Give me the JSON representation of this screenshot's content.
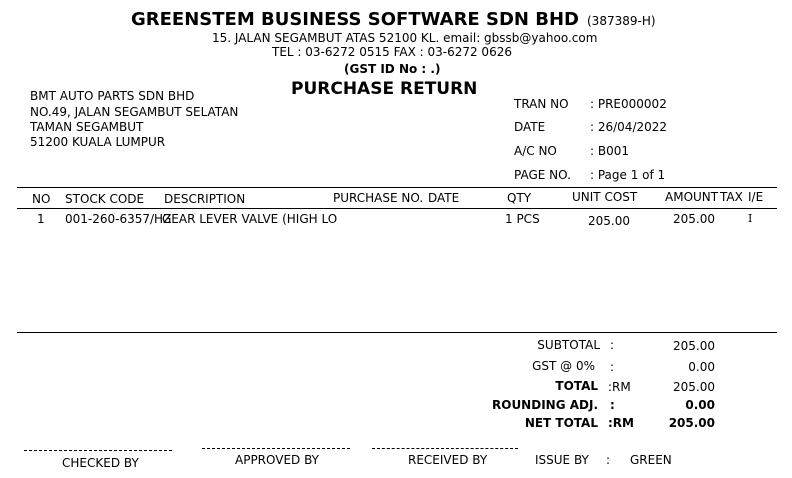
{
  "company": {
    "name": "GREENSTEM BUSINESS SOFTWARE SDN BHD",
    "reg_no": "(387389-H)",
    "address_line": "15. JALAN SEGAMBUT ATAS 52100 KL. email: gbssb@yahoo.com",
    "tel_fax": "TEL :  03-6272 0515    FAX :  03-6272 0626",
    "gst_id": "(GST ID No :   .)"
  },
  "doc_title": "PURCHASE RETURN",
  "supplier": {
    "name": "BMT AUTO PARTS SDN BHD",
    "address1": "NO.49, JALAN SEGAMBUT SELATAN",
    "address2": "TAMAN SEGAMBUT",
    "address3": "51200 KUALA LUMPUR"
  },
  "info": [
    {
      "label": "TRAN NO",
      "value": ": PRE000002"
    },
    {
      "label": "DATE",
      "value": ": 26/04/2022"
    },
    {
      "label": "A/C NO",
      "value": ": B001"
    },
    {
      "label": "PAGE NO.",
      "value": ": Page 1 of 1"
    }
  ],
  "columns": {
    "no": "NO",
    "stock_code": "STOCK CODE",
    "description": "DESCRIPTION",
    "purchase_no": "PURCHASE NO.",
    "date": "DATE",
    "qty": "QTY",
    "unit_cost": "UNIT COST",
    "amount": "AMOUNT",
    "tax": "TAX",
    "ie": "I/E"
  },
  "items": [
    {
      "no": "1",
      "stock_code": "001-260-6357/HZ",
      "description": "GEAR LEVER VALVE (HIGH LO",
      "qty": "1 PCS",
      "unit_cost": "205.00",
      "amount": "205.00",
      "ie": "I"
    }
  ],
  "totals": {
    "subtotal_label": "SUBTOTAL",
    "subtotal_colon": ":",
    "subtotal_value": "205.00",
    "gst_label": "GST @ 0%",
    "gst_colon": ":",
    "gst_value": "0.00",
    "total_label": "TOTAL",
    "total_colon": ":RM",
    "total_value": "205.00",
    "rounding_label": "ROUNDING ADJ.",
    "rounding_colon": ":",
    "rounding_value": "0.00",
    "net_label": "NET TOTAL",
    "net_colon": ":RM",
    "net_value": "205.00"
  },
  "signatures": {
    "checked_by": "CHECKED BY",
    "approved_by": "APPROVED BY",
    "received_by": "RECEIVED BY",
    "issue_by_label": "ISSUE BY",
    "issue_by_colon": ":",
    "issue_by_value": "GREEN"
  }
}
